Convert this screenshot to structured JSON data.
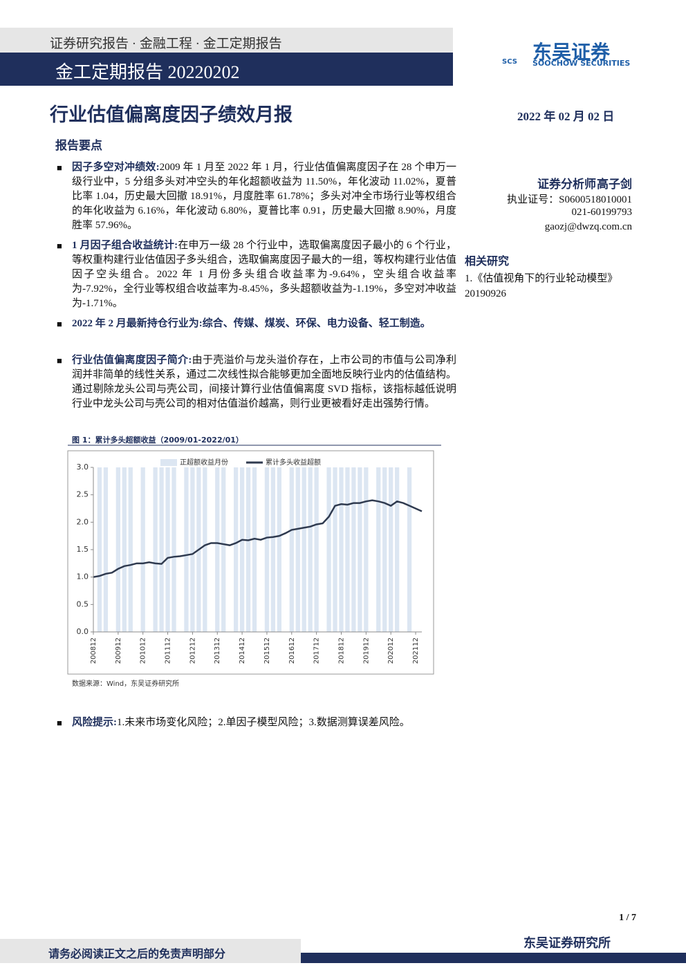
{
  "header": {
    "series": "证券研究报告 · 金融工程 · 金工定期报告",
    "report_line": "金工定期报告 20220202",
    "logo_cn": "东吴证券",
    "logo_abbr": "SCS",
    "logo_en": "SOOCHOW SECURITIES"
  },
  "title": "行业估值偏离度因子绩效月报",
  "date": "2022 年 02 月 02 日",
  "summary": {
    "heading": "报告要点",
    "items": [
      {
        "label": "因子多空对冲绩效:",
        "text": "2009 年 1 月至 2022 年 1 月，行业估值偏离度因子在 28 个申万一级行业中，5 分组多头对冲空头的年化超额收益为 11.50%，年化波动 11.02%，夏普比率 1.04，历史最大回撤 18.91%，月度胜率 61.78%；多头对冲全市场行业等权组合的年化收益为 6.16%，年化波动 6.80%，夏普比率 0.91，历史最大回撤 8.90%，月度胜率 57.96%。"
      },
      {
        "label": "1 月因子组合收益统计:",
        "text": "在申万一级 28 个行业中，选取偏离度因子最小的 6 个行业，等权重构建行业估值因子多头组合，选取偏离度因子最大的一组，等权构建行业估值因子空头组合。2022 年 1 月份多头组合收益率为-9.64%，空头组合收益率为-7.92%，全行业等权组合收益率为-8.45%，多头超额收益为-1.19%，多空对冲收益为-1.71%。"
      },
      {
        "label": "2022 年 2 月最新持仓行业为:",
        "text": "综合、传媒、煤炭、环保、电力设备、轻工制造。"
      },
      {
        "label": "行业估值偏离度因子简介:",
        "text": "由于壳溢价与龙头溢价存在，上市公司的市值与公司净利润并非简单的线性关系，通过二次线性拟合能够更加全面地反映行业内的估值结构。通过剔除龙头公司与壳公司，间接计算行业估值偏离度 SVD 指标，该指标越低说明行业中龙头公司与壳公司的相对估值溢价越高，则行业更被看好走出强势行情。"
      }
    ]
  },
  "analyst": {
    "role": "证券分析师",
    "name": "高子剑",
    "license": "执业证号：S0600518010001",
    "phone": "021-60199793",
    "email": "gaozj@dwzq.com.cn"
  },
  "related": {
    "heading": "相关研究",
    "items": [
      "1.《估值视角下的行业轮动模型》20190926"
    ]
  },
  "chart_data": {
    "type": "bar-line",
    "title": "图 1：累计多头超额收益（2009/01-2022/01）",
    "x": [
      "200812",
      null,
      null,
      null,
      "200912",
      null,
      null,
      null,
      "201012",
      null,
      null,
      null,
      "201112",
      null,
      null,
      null,
      "201212",
      null,
      null,
      null,
      "201312",
      null,
      null,
      null,
      "201412",
      null,
      null,
      null,
      "201512",
      null,
      null,
      null,
      "201612",
      null,
      null,
      null,
      "201712",
      null,
      null,
      null,
      "201812",
      null,
      null,
      null,
      "201912",
      null,
      null,
      null,
      "202012",
      null,
      null,
      null,
      "202112",
      null
    ],
    "series": [
      {
        "name": "正超额收益月份",
        "type": "bar",
        "color": "#dce6f2",
        "values": [
          null,
          3,
          3,
          null,
          3,
          3,
          3,
          null,
          3,
          null,
          3,
          3,
          3,
          3,
          null,
          3,
          3,
          3,
          3,
          null,
          3,
          3,
          null,
          3,
          3,
          3,
          3,
          null,
          3,
          3,
          3,
          null,
          3,
          3,
          3,
          3,
          3,
          null,
          3,
          3,
          3,
          3,
          3,
          3,
          3,
          null,
          3,
          3,
          3,
          3,
          null,
          3,
          null,
          null
        ]
      },
      {
        "name": "累计多头收益超额",
        "type": "line",
        "color": "#2f3a4f",
        "values": [
          1.0,
          1.02,
          1.06,
          1.08,
          1.15,
          1.2,
          1.22,
          1.25,
          1.25,
          1.27,
          1.25,
          1.24,
          1.35,
          1.37,
          1.38,
          1.4,
          1.42,
          1.5,
          1.58,
          1.62,
          1.62,
          1.6,
          1.58,
          1.62,
          1.68,
          1.67,
          1.7,
          1.68,
          1.72,
          1.73,
          1.75,
          1.8,
          1.86,
          1.88,
          1.9,
          1.92,
          1.96,
          1.98,
          2.1,
          2.3,
          2.33,
          2.32,
          2.35,
          2.35,
          2.38,
          2.4,
          2.38,
          2.35,
          2.3,
          2.38,
          2.35,
          2.3,
          2.25,
          2.2
        ]
      }
    ],
    "ylim": [
      0,
      3
    ],
    "yticks": [
      {
        "value": 0,
        "label": "0.0"
      },
      {
        "value": 0.5,
        "label": "0.5"
      },
      {
        "value": 1,
        "label": "1.0"
      },
      {
        "value": 1.5,
        "label": "1.5"
      },
      {
        "value": 2,
        "label": "2.0"
      },
      {
        "value": 2.5,
        "label": "2.5"
      },
      {
        "value": 3,
        "label": "3.0"
      }
    ],
    "source": "数据来源：Wind，东吴证券研究所"
  },
  "risk": {
    "label": "风险提示:",
    "text": "1.未来市场变化风险；2.单因子模型风险；3.数据测算误差风险。"
  },
  "footer": {
    "page": "1 / 7",
    "disclaimer": "请务必阅读正文之后的免责声明部分",
    "institute": "东吴证券研究所"
  }
}
